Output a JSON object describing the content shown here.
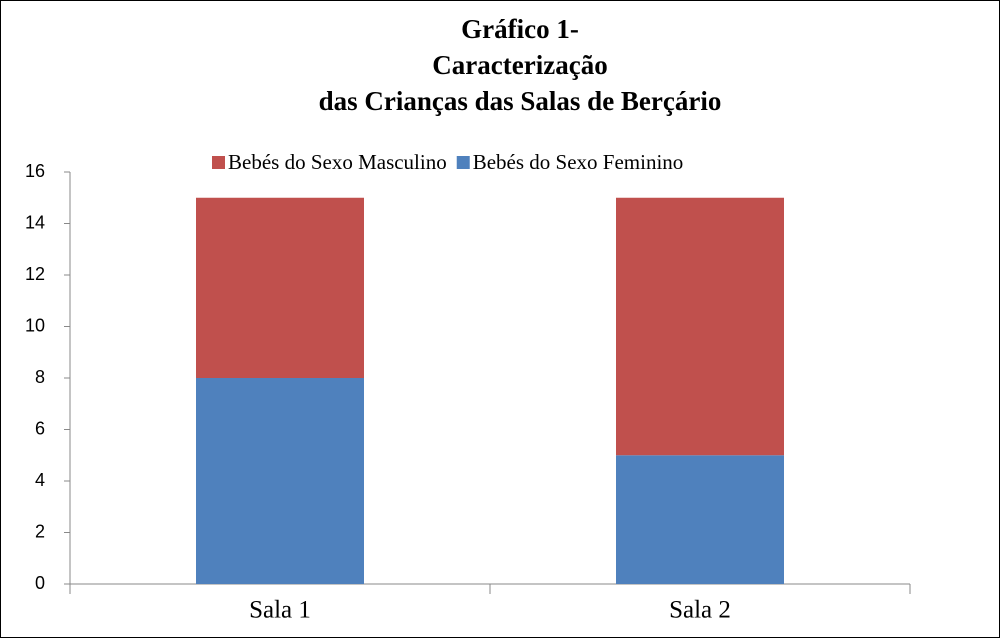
{
  "chart_data": {
    "type": "stacked_bar",
    "title": [
      "Gráfico 1-",
      "Caracterização",
      "das Crianças das Salas de Berçário"
    ],
    "categories": [
      "Sala 1",
      "Sala 2"
    ],
    "series": [
      {
        "name": "Bebés do Sexo Masculino",
        "color": "#c0504d",
        "values": [
          7,
          10
        ]
      },
      {
        "name": "Bebés do Sexo Feminino",
        "color": "#4f81bd",
        "values": [
          8,
          5
        ]
      }
    ],
    "ylim": [
      0,
      16
    ],
    "yticks": [
      0,
      2,
      4,
      6,
      8,
      10,
      12,
      14,
      16
    ],
    "legend": "top",
    "grid": false
  }
}
